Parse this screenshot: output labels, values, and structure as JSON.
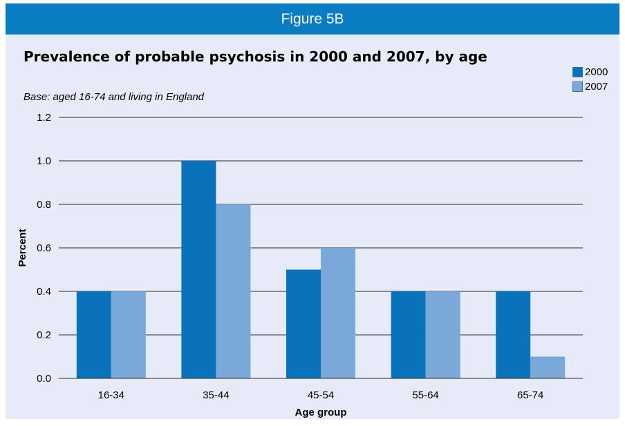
{
  "banner": "Figure 5B",
  "chart_data": {
    "type": "bar",
    "title": "Prevalence of probable psychosis in 2000 and 2007, by age",
    "subtitle": "Base: aged 16-74 and living in England",
    "xlabel": "Age group",
    "ylabel": "Percent",
    "categories": [
      "16-34",
      "35-44",
      "45-54",
      "55-64",
      "65-74"
    ],
    "series": [
      {
        "name": "2000",
        "values": [
          0.4,
          1.0,
          0.5,
          0.4,
          0.4
        ],
        "color": "#0a72ba"
      },
      {
        "name": "2007",
        "values": [
          0.4,
          0.8,
          0.6,
          0.4,
          0.1
        ],
        "color": "#7aa9d9"
      }
    ],
    "ylim": [
      0,
      1.2
    ],
    "yticks": [
      "0.0",
      "0.2",
      "0.4",
      "0.6",
      "0.8",
      "1.0",
      "1.2"
    ],
    "grid": true,
    "legend_position": "top-right"
  }
}
